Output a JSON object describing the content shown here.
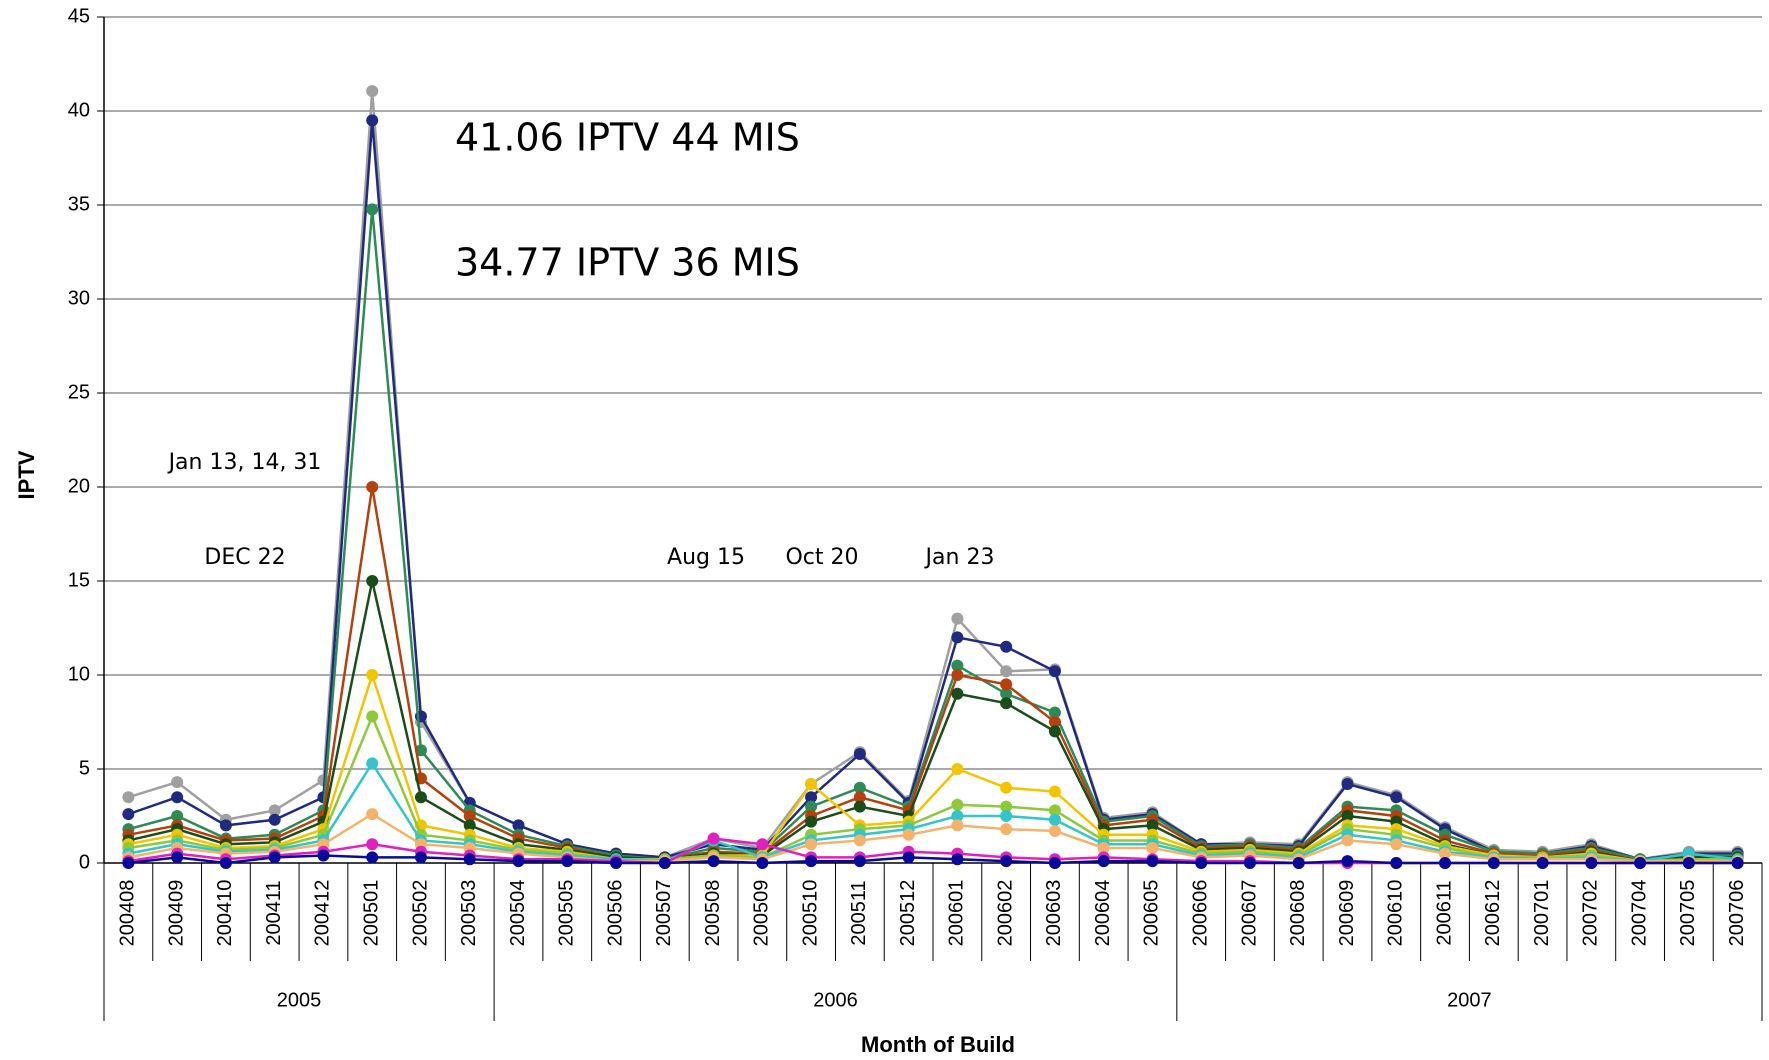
{
  "chart_data": {
    "type": "line",
    "y_label": "IPTV",
    "x_label": "Month of Build",
    "categories": [
      "200408",
      "200409",
      "200410",
      "200411",
      "200412",
      "200501",
      "200502",
      "200503",
      "200504",
      "200505",
      "200506",
      "200507",
      "200508",
      "200509",
      "200510",
      "200511",
      "200512",
      "200601",
      "200602",
      "200603",
      "200604",
      "200605",
      "200606",
      "200607",
      "200608",
      "200609",
      "200610",
      "200611",
      "200612",
      "200701",
      "200702",
      "200704",
      "200705",
      "200706"
    ],
    "groups": [
      {
        "label": "2005",
        "start": "200408",
        "end": "200503"
      },
      {
        "label": "2006",
        "start": "200504",
        "end": "200605"
      },
      {
        "label": "2007",
        "start": "200606",
        "end": "200706"
      }
    ],
    "annotations": [
      "41.06 IPTV 44 MIS",
      "34.77 IPTV 36 MIS",
      "Jan 13, 14, 31",
      "DEC 22",
      "Aug 15",
      "Oct 20",
      "Jan 23"
    ],
    "ylim": [
      0,
      45
    ],
    "yticks": [
      0,
      5,
      10,
      15,
      20,
      25,
      30,
      35,
      40,
      45
    ],
    "grid": true,
    "series": [
      {
        "color": "#a0a0a0",
        "values": [
          3.5,
          4.3,
          2.3,
          2.8,
          4.4,
          41.06,
          7.5,
          3.2,
          2,
          1,
          0.5,
          0.3,
          1.3,
          0.8,
          4.2,
          5.9,
          3.3,
          13,
          10.2,
          10.3,
          2.4,
          2.7,
          1,
          1.1,
          1,
          4.3,
          3.6,
          1.9,
          0.7,
          0.6,
          1,
          0.2,
          0.6,
          0.6
        ]
      },
      {
        "color": "#1f2a80",
        "values": [
          2.6,
          3.5,
          2,
          2.3,
          3.5,
          39.5,
          7.8,
          3.2,
          2,
          1,
          0.5,
          0.3,
          1,
          0.7,
          3.5,
          5.8,
          3.2,
          12,
          11.5,
          10.2,
          2.3,
          2.6,
          1,
          1,
          0.9,
          4.2,
          3.5,
          1.8,
          0.6,
          0.5,
          0.9,
          0.2,
          0.5,
          0.5
        ]
      },
      {
        "color": "#2e8b57",
        "values": [
          1.8,
          2.5,
          1.3,
          1.5,
          2.8,
          34.77,
          6,
          2.8,
          1.5,
          0.9,
          0.4,
          0.2,
          0.8,
          0.6,
          3,
          4,
          3,
          10.5,
          9,
          8,
          2.2,
          2.5,
          0.9,
          1,
          0.8,
          3,
          2.8,
          1.5,
          0.6,
          0.5,
          0.8,
          0.2,
          0.4,
          0.4
        ]
      },
      {
        "color": "#b5410e",
        "values": [
          1.5,
          2,
          1.2,
          1.3,
          2.5,
          20,
          4.5,
          2.5,
          1.3,
          0.8,
          0.3,
          0.2,
          0.6,
          0.5,
          2.5,
          3.5,
          2.8,
          10,
          9.5,
          7.5,
          2,
          2.3,
          0.8,
          0.9,
          0.7,
          2.8,
          2.5,
          1.2,
          0.5,
          0.4,
          0.7,
          0.1,
          0.3,
          0.3
        ]
      },
      {
        "color": "#1a4d1a",
        "values": [
          1.2,
          1.8,
          1,
          1.1,
          2.2,
          15,
          3.5,
          2,
          1,
          0.7,
          0.3,
          0.2,
          0.5,
          0.4,
          2.2,
          3,
          2.5,
          9,
          8.5,
          7,
          1.8,
          2,
          0.7,
          0.8,
          0.6,
          2.5,
          2.2,
          1,
          0.4,
          0.3,
          0.6,
          0.1,
          0.3,
          0.3
        ]
      },
      {
        "color": "#f2c500",
        "values": [
          1,
          1.5,
          0.8,
          0.9,
          1.8,
          10,
          2,
          1.5,
          0.8,
          0.6,
          0.2,
          0.2,
          0.4,
          0.4,
          4.2,
          2,
          2.2,
          5,
          4,
          3.8,
          1.5,
          1.5,
          0.6,
          0.7,
          0.5,
          2,
          1.8,
          0.9,
          0.4,
          0.3,
          0.5,
          0.1,
          0.2,
          0.2
        ]
      },
      {
        "color": "#8fc93a",
        "values": [
          0.8,
          1.2,
          0.7,
          0.8,
          1.5,
          7.8,
          1.5,
          1.2,
          0.7,
          0.5,
          0.2,
          0.2,
          0.4,
          0.3,
          1.5,
          1.8,
          2,
          3.1,
          3,
          2.8,
          1.2,
          1.2,
          0.5,
          0.6,
          0.4,
          1.8,
          1.5,
          0.8,
          0.3,
          0.3,
          0.4,
          0.1,
          0.2,
          0.2
        ]
      },
      {
        "color": "#33c5cc",
        "values": [
          0.5,
          1,
          0.6,
          0.7,
          1.2,
          5.3,
          1.2,
          1,
          0.6,
          0.4,
          0.2,
          0.1,
          1.2,
          0.3,
          1.2,
          1.5,
          1.8,
          2.5,
          2.5,
          2.3,
          1,
          1,
          0.4,
          0.5,
          0.3,
          1.5,
          1.2,
          0.6,
          0.3,
          0.2,
          0.3,
          0.1,
          0.5,
          0.2
        ]
      },
      {
        "color": "#f5b26b",
        "values": [
          0.3,
          0.8,
          0.5,
          0.6,
          1,
          2.6,
          1,
          0.8,
          0.5,
          0.3,
          0.1,
          0.1,
          0.3,
          0.2,
          1,
          1.2,
          1.5,
          2,
          1.8,
          1.7,
          0.8,
          0.8,
          0.3,
          0.4,
          0.2,
          1.2,
          1,
          0.5,
          0.2,
          0.2,
          0.2,
          0.1,
          0.1,
          0.1
        ]
      },
      {
        "color": "#e020c0",
        "values": [
          0.1,
          0.5,
          0.2,
          0.4,
          0.6,
          1,
          0.6,
          0.4,
          0.2,
          0.2,
          0.1,
          0,
          1.3,
          1,
          0.3,
          0.3,
          0.6,
          0.5,
          0.3,
          0.2,
          0.3,
          0.2,
          0.1,
          0.1,
          0,
          0,
          0,
          0,
          0,
          0,
          0,
          0,
          0,
          0
        ]
      },
      {
        "color": "#0a0a9a",
        "values": [
          0,
          0.3,
          0,
          0.3,
          0.4,
          0.3,
          0.3,
          0.2,
          0.1,
          0.1,
          0,
          0,
          0.1,
          0,
          0.1,
          0.1,
          0.3,
          0.2,
          0.1,
          0,
          0.1,
          0.1,
          0,
          0,
          0,
          0.1,
          0,
          0,
          0,
          0,
          0,
          0,
          0,
          0
        ]
      }
    ]
  }
}
